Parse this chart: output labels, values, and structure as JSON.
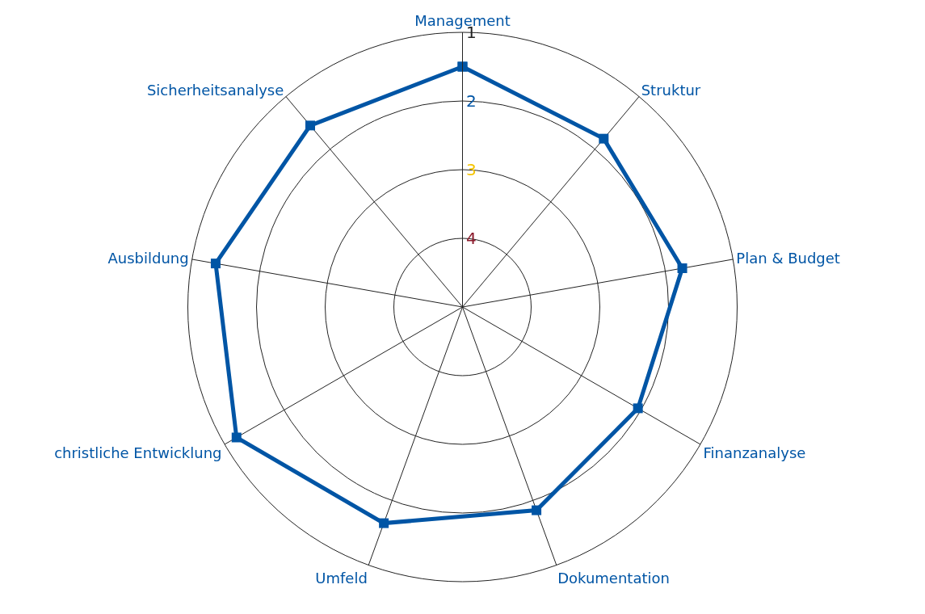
{
  "chart_data": {
    "type": "radar",
    "categories": [
      "Management",
      "Struktur",
      "Plan & Budget",
      "Finanzanalyse",
      "Dokumentation",
      "Umfeld",
      "christliche Entwicklung",
      "Ausbildung",
      "Sicherheitsanalyse"
    ],
    "series": [
      {
        "color": "#0055a5",
        "values": [
          1.5,
          1.8,
          1.75,
          2.05,
          1.85,
          1.65,
          1.2,
          1.35,
          1.55
        ]
      }
    ],
    "ylim": [
      5,
      1
    ],
    "yticks": [
      1,
      2,
      3,
      4
    ],
    "marker": "square",
    "line_style": "solid",
    "grid": true,
    "legend": false
  }
}
